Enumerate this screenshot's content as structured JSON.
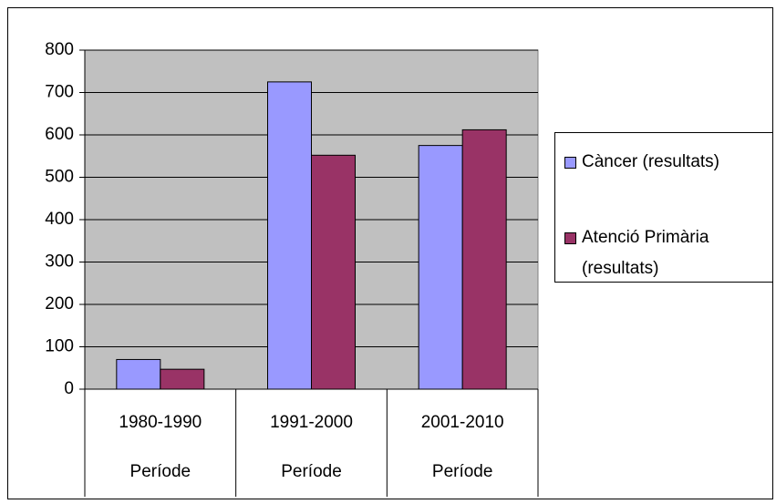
{
  "chart_data": {
    "type": "bar",
    "categories": [
      "1980-1990",
      "1991-2000",
      "2001-2010"
    ],
    "category_group": [
      "Període",
      "Període",
      "Període"
    ],
    "series": [
      {
        "name": "Càncer (resultats)",
        "color": "#9999ff",
        "values": [
          70,
          725,
          575
        ]
      },
      {
        "name": "Atenció Primària (resultats)",
        "color": "#993366",
        "values": [
          47,
          552,
          612
        ]
      }
    ],
    "ylim": [
      0,
      800
    ],
    "yticks": [
      0,
      100,
      200,
      300,
      400,
      500,
      600,
      700,
      800
    ],
    "grid": true,
    "plot_background": "#c0c0c0",
    "legend": "right"
  }
}
